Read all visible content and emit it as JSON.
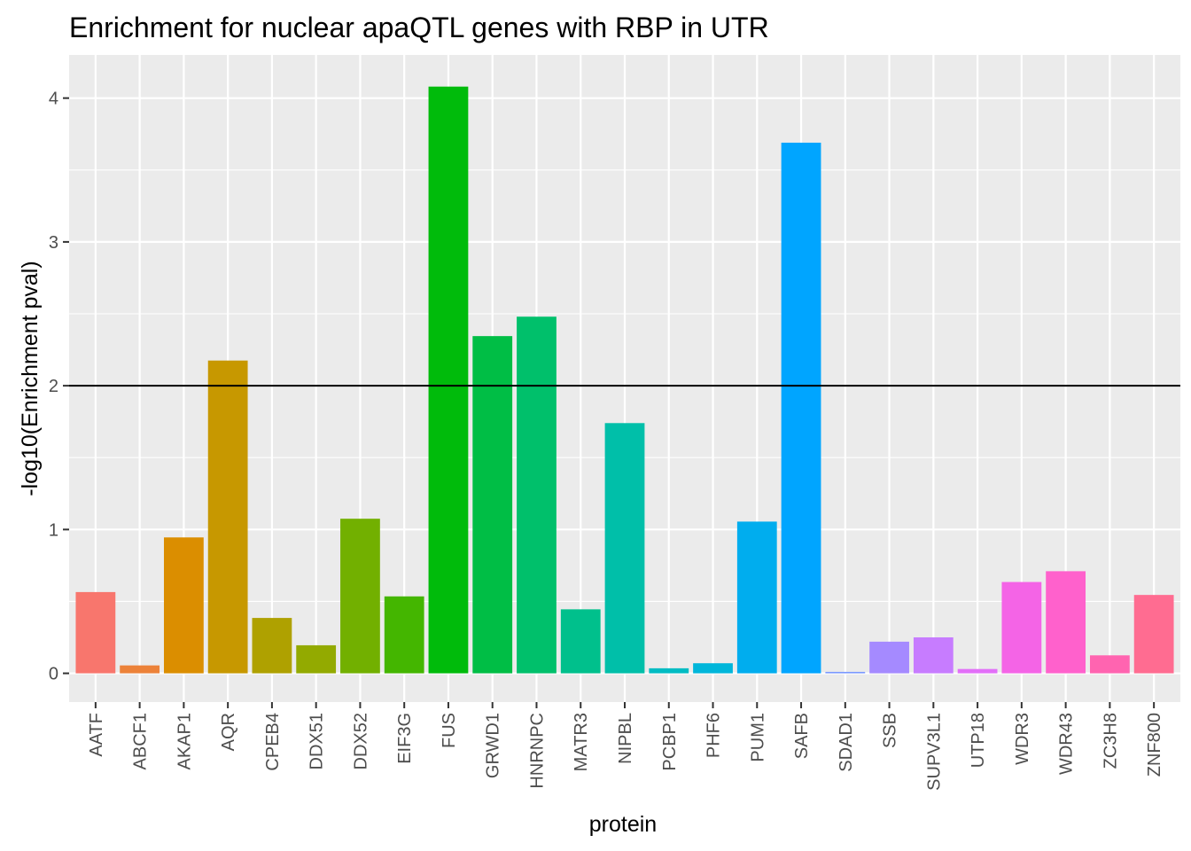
{
  "chart_data": {
    "type": "bar",
    "title": "Enrichment for nuclear apaQTL genes with RBP in UTR",
    "xlabel": "protein",
    "ylabel": "-log10(Enrichment pval)",
    "ylim": [
      -0.2,
      4.3
    ],
    "yticks": [
      0,
      1,
      2,
      3,
      4
    ],
    "grid": true,
    "legend": "none",
    "reference_line": {
      "y": 2,
      "color": "#000000"
    },
    "categories": [
      "AATF",
      "ABCF1",
      "AKAP1",
      "AQR",
      "CPEB4",
      "DDX51",
      "DDX52",
      "EIF3G",
      "FUS",
      "GRWD1",
      "HNRNPC",
      "MATR3",
      "NIPBL",
      "PCBP1",
      "PHF6",
      "PUM1",
      "SAFB",
      "SDAD1",
      "SSB",
      "SUPV3L1",
      "UTP18",
      "WDR3",
      "WDR43",
      "ZC3H8",
      "ZNF800"
    ],
    "values": [
      0.565,
      0.055,
      0.945,
      2.175,
      0.385,
      0.195,
      1.075,
      0.535,
      4.08,
      2.345,
      2.48,
      0.445,
      1.74,
      0.035,
      0.07,
      1.055,
      3.69,
      0.01,
      0.22,
      0.25,
      0.03,
      0.635,
      0.71,
      0.125,
      0.545
    ],
    "colors": [
      "#F8766D",
      "#EC8239",
      "#DB8E00",
      "#C79800",
      "#AFA100",
      "#93AA00",
      "#72B000",
      "#44B600",
      "#00BB0B",
      "#00BE45",
      "#00C06B",
      "#00C08C",
      "#00BFA9",
      "#00BCC3",
      "#00B6DA",
      "#00ADEE",
      "#00A5FF",
      "#7997FF",
      "#A58AFF",
      "#C77CFF",
      "#E26FF8",
      "#F464E6",
      "#FF61CC",
      "#FF64B0",
      "#FF6C91"
    ],
    "panel_background": "#EBEBEB",
    "gridline_color": "#FFFFFF"
  }
}
